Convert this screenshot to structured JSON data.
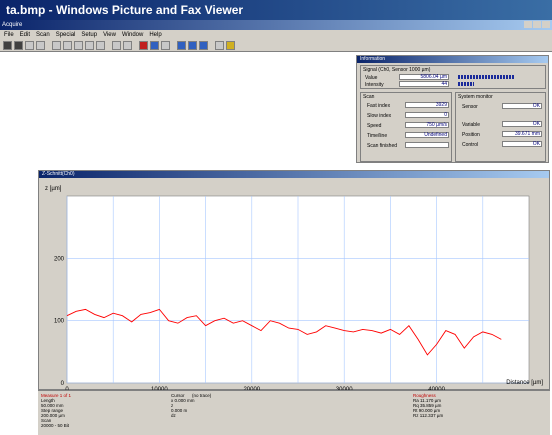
{
  "window_title": "ta.bmp - Windows Picture and Fax Viewer",
  "app": {
    "title": "Acquire"
  },
  "menu": [
    "File",
    "Edit",
    "Scan",
    "Special",
    "Setup",
    "View",
    "Window",
    "Help"
  ],
  "info_panel": {
    "title": "Information",
    "signal_title": "Signal (Ch0, Sensor 1000 µm)",
    "value_label": "Value",
    "value": "5806.04 µm",
    "intensity_label": "Intensity",
    "intensity": "44",
    "value_meter": 0.7,
    "intensity_meter": 0.2,
    "scan": {
      "title": "Scan",
      "rows": [
        {
          "label": "Fast index",
          "value": "3929"
        },
        {
          "label": "Slow index",
          "value": "0"
        },
        {
          "label": "Speed",
          "value": "750 µm/s"
        },
        {
          "label": "Time/line",
          "value": "Undefined"
        },
        {
          "label": "Scan finished",
          "value": ""
        }
      ]
    },
    "system": {
      "title": "System monitor",
      "rows": [
        {
          "label": "Sensor",
          "value": "OK"
        },
        {
          "label": "Variable",
          "value": "OK"
        },
        {
          "label": "Position",
          "value": "39.671 mm"
        },
        {
          "label": "Control",
          "value": "OK"
        }
      ]
    }
  },
  "chart_window": {
    "title": "Z-Schnitt(Ch0)"
  },
  "chart_data": {
    "type": "line",
    "ylabel": "z [µm]",
    "xlabel": "Distance [µm]",
    "xlim": [
      0,
      50000
    ],
    "ylim": [
      0,
      300
    ],
    "xticks": [
      0,
      10000,
      20000,
      30000,
      40000
    ],
    "yticks": [
      0,
      100,
      200
    ],
    "grid": true,
    "color": "#ff0000",
    "series": [
      {
        "x": [
          0,
          1000,
          2000,
          3000,
          4000,
          5000,
          6000,
          7000,
          8000,
          9000,
          10000,
          11000,
          12000,
          13000,
          14000,
          15000,
          16000,
          17000,
          18000,
          19000,
          20000,
          21000,
          22000,
          23000,
          24000,
          25000,
          26000,
          27000,
          28000,
          29000,
          30000,
          31000,
          32000,
          33000,
          34000,
          35000,
          36000,
          37000,
          38000,
          39000,
          40000,
          41000,
          42000,
          43000,
          44000,
          45000,
          46000,
          47000
        ],
        "y": [
          108,
          115,
          118,
          110,
          105,
          112,
          108,
          98,
          110,
          113,
          118,
          100,
          96,
          105,
          108,
          92,
          100,
          104,
          96,
          100,
          92,
          84,
          100,
          96,
          88,
          86,
          78,
          82,
          92,
          88,
          84,
          82,
          86,
          84,
          80,
          86,
          78,
          92,
          70,
          45,
          62,
          84,
          78,
          56,
          74,
          82,
          78,
          70
        ]
      }
    ]
  },
  "bottom_panel": {
    "measure": {
      "title": "Measure 1 of 1",
      "lines": [
        "Length",
        "50.000 mm",
        "Step range",
        "200.000 µm",
        "Scan",
        "20000 - 50 Bit"
      ]
    },
    "cursor": {
      "title": "Cursor",
      "mode": "(no trace)",
      "lines": [
        "x   0.000 mm",
        "z",
        "     0.000 m",
        "dz"
      ]
    },
    "roughness": {
      "title": "Roughness",
      "lines": [
        "Ra  11.170 µm",
        "Rq  35.859 µm",
        "Rt   90.000 µm",
        "Rz  112.337 µm"
      ]
    }
  }
}
